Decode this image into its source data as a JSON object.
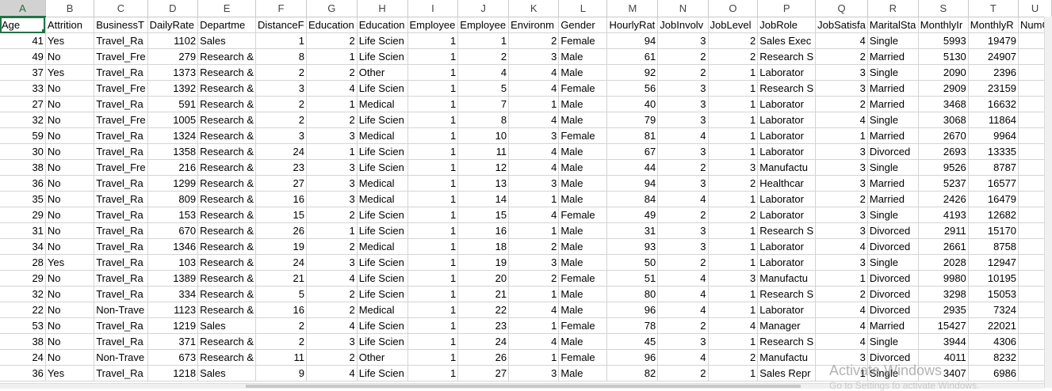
{
  "column_letters": [
    "A",
    "B",
    "C",
    "D",
    "E",
    "F",
    "G",
    "H",
    "I",
    "J",
    "K",
    "L",
    "M",
    "N",
    "O",
    "P",
    "Q",
    "R",
    "S",
    "T",
    "U"
  ],
  "headers": [
    "Age",
    "Attrition",
    "BusinessT",
    "DailyRate",
    "Departme",
    "DistanceF",
    "Education",
    "Education",
    "Employee",
    "Employee",
    "Environm",
    "Gender",
    "HourlyRat",
    "JobInvolv",
    "JobLevel",
    "JobRole",
    "JobSatisfa",
    "MaritalSta",
    "MonthlyIr",
    "MonthlyR",
    "NumC"
  ],
  "rows": [
    [
      "41",
      "Yes",
      "Travel_Ra",
      "1102",
      "Sales",
      "1",
      "2",
      "Life Scien",
      "1",
      "1",
      "2",
      "Female",
      "94",
      "3",
      "2",
      "Sales Exec",
      "4",
      "Single",
      "5993",
      "19479",
      ""
    ],
    [
      "49",
      "No",
      "Travel_Fre",
      "279",
      "Research &",
      "8",
      "1",
      "Life Scien",
      "1",
      "2",
      "3",
      "Male",
      "61",
      "2",
      "2",
      "Research S",
      "2",
      "Married",
      "5130",
      "24907",
      ""
    ],
    [
      "37",
      "Yes",
      "Travel_Ra",
      "1373",
      "Research &",
      "2",
      "2",
      "Other",
      "1",
      "4",
      "4",
      "Male",
      "92",
      "2",
      "1",
      "Laborator",
      "3",
      "Single",
      "2090",
      "2396",
      ""
    ],
    [
      "33",
      "No",
      "Travel_Fre",
      "1392",
      "Research &",
      "3",
      "4",
      "Life Scien",
      "1",
      "5",
      "4",
      "Female",
      "56",
      "3",
      "1",
      "Research S",
      "3",
      "Married",
      "2909",
      "23159",
      ""
    ],
    [
      "27",
      "No",
      "Travel_Ra",
      "591",
      "Research &",
      "2",
      "1",
      "Medical",
      "1",
      "7",
      "1",
      "Male",
      "40",
      "3",
      "1",
      "Laborator",
      "2",
      "Married",
      "3468",
      "16632",
      ""
    ],
    [
      "32",
      "No",
      "Travel_Fre",
      "1005",
      "Research &",
      "2",
      "2",
      "Life Scien",
      "1",
      "8",
      "4",
      "Male",
      "79",
      "3",
      "1",
      "Laborator",
      "4",
      "Single",
      "3068",
      "11864",
      ""
    ],
    [
      "59",
      "No",
      "Travel_Ra",
      "1324",
      "Research &",
      "3",
      "3",
      "Medical",
      "1",
      "10",
      "3",
      "Female",
      "81",
      "4",
      "1",
      "Laborator",
      "1",
      "Married",
      "2670",
      "9964",
      ""
    ],
    [
      "30",
      "No",
      "Travel_Ra",
      "1358",
      "Research &",
      "24",
      "1",
      "Life Scien",
      "1",
      "11",
      "4",
      "Male",
      "67",
      "3",
      "1",
      "Laborator",
      "3",
      "Divorced",
      "2693",
      "13335",
      ""
    ],
    [
      "38",
      "No",
      "Travel_Fre",
      "216",
      "Research &",
      "23",
      "3",
      "Life Scien",
      "1",
      "12",
      "4",
      "Male",
      "44",
      "2",
      "3",
      "Manufactu",
      "3",
      "Single",
      "9526",
      "8787",
      ""
    ],
    [
      "36",
      "No",
      "Travel_Ra",
      "1299",
      "Research &",
      "27",
      "3",
      "Medical",
      "1",
      "13",
      "3",
      "Male",
      "94",
      "3",
      "2",
      "Healthcar",
      "3",
      "Married",
      "5237",
      "16577",
      ""
    ],
    [
      "35",
      "No",
      "Travel_Ra",
      "809",
      "Research &",
      "16",
      "3",
      "Medical",
      "1",
      "14",
      "1",
      "Male",
      "84",
      "4",
      "1",
      "Laborator",
      "2",
      "Married",
      "2426",
      "16479",
      ""
    ],
    [
      "29",
      "No",
      "Travel_Ra",
      "153",
      "Research &",
      "15",
      "2",
      "Life Scien",
      "1",
      "15",
      "4",
      "Female",
      "49",
      "2",
      "2",
      "Laborator",
      "3",
      "Single",
      "4193",
      "12682",
      ""
    ],
    [
      "31",
      "No",
      "Travel_Ra",
      "670",
      "Research &",
      "26",
      "1",
      "Life Scien",
      "1",
      "16",
      "1",
      "Male",
      "31",
      "3",
      "1",
      "Research S",
      "3",
      "Divorced",
      "2911",
      "15170",
      ""
    ],
    [
      "34",
      "No",
      "Travel_Ra",
      "1346",
      "Research &",
      "19",
      "2",
      "Medical",
      "1",
      "18",
      "2",
      "Male",
      "93",
      "3",
      "1",
      "Laborator",
      "4",
      "Divorced",
      "2661",
      "8758",
      ""
    ],
    [
      "28",
      "Yes",
      "Travel_Ra",
      "103",
      "Research &",
      "24",
      "3",
      "Life Scien",
      "1",
      "19",
      "3",
      "Male",
      "50",
      "2",
      "1",
      "Laborator",
      "3",
      "Single",
      "2028",
      "12947",
      ""
    ],
    [
      "29",
      "No",
      "Travel_Ra",
      "1389",
      "Research &",
      "21",
      "4",
      "Life Scien",
      "1",
      "20",
      "2",
      "Female",
      "51",
      "4",
      "3",
      "Manufactu",
      "1",
      "Divorced",
      "9980",
      "10195",
      ""
    ],
    [
      "32",
      "No",
      "Travel_Ra",
      "334",
      "Research &",
      "5",
      "2",
      "Life Scien",
      "1",
      "21",
      "1",
      "Male",
      "80",
      "4",
      "1",
      "Research S",
      "2",
      "Divorced",
      "3298",
      "15053",
      ""
    ],
    [
      "22",
      "No",
      "Non-Trave",
      "1123",
      "Research &",
      "16",
      "2",
      "Medical",
      "1",
      "22",
      "4",
      "Male",
      "96",
      "4",
      "1",
      "Laborator",
      "4",
      "Divorced",
      "2935",
      "7324",
      ""
    ],
    [
      "53",
      "No",
      "Travel_Ra",
      "1219",
      "Sales",
      "2",
      "4",
      "Life Scien",
      "1",
      "23",
      "1",
      "Female",
      "78",
      "2",
      "4",
      "Manager",
      "4",
      "Married",
      "15427",
      "22021",
      ""
    ],
    [
      "38",
      "No",
      "Travel_Ra",
      "371",
      "Research &",
      "2",
      "3",
      "Life Scien",
      "1",
      "24",
      "4",
      "Male",
      "45",
      "3",
      "1",
      "Research S",
      "4",
      "Single",
      "3944",
      "4306",
      ""
    ],
    [
      "24",
      "No",
      "Non-Trave",
      "673",
      "Research &",
      "11",
      "2",
      "Other",
      "1",
      "26",
      "1",
      "Female",
      "96",
      "4",
      "2",
      "Manufactu",
      "3",
      "Divorced",
      "4011",
      "8232",
      ""
    ],
    [
      "36",
      "Yes",
      "Travel_Ra",
      "1218",
      "Sales",
      "9",
      "4",
      "Life Scien",
      "1",
      "27",
      "3",
      "Male",
      "82",
      "2",
      "1",
      "Sales Repr",
      "1",
      "Single",
      "3407",
      "6986",
      ""
    ]
  ],
  "numeric_columns": [
    0,
    3,
    5,
    6,
    8,
    9,
    10,
    12,
    13,
    14,
    16,
    18,
    19
  ],
  "watermark": {
    "line1": "Activate Windows",
    "line2": "Go to Settings to activate Windows."
  },
  "colors": {
    "selected_header": "#217346",
    "grid": "#d4d4d4"
  }
}
